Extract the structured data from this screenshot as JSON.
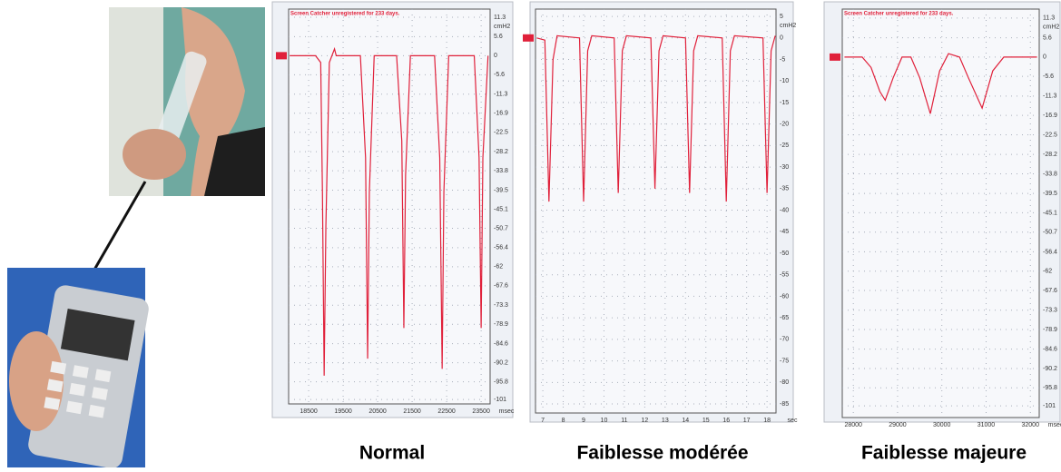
{
  "chart_data": [
    {
      "type": "line",
      "title": "Normal",
      "header": "Screen Catcher unregistered for 233 days.",
      "y_unit": "cmH2",
      "x_unit": "msec",
      "x": [
        17950,
        18700,
        18850,
        18900,
        18950,
        19000,
        19100,
        19250,
        19300,
        20000,
        20150,
        20210,
        20260,
        20400,
        21050,
        21200,
        21260,
        21310,
        21450,
        22150,
        22300,
        22370,
        22420,
        22560,
        23300,
        23440,
        23500,
        23550,
        23700
      ],
      "series": [
        {
          "color": "#e0203a",
          "values": [
            0,
            0,
            -2,
            -40,
            -94,
            -50,
            -2,
            2,
            0,
            0,
            -30,
            -89,
            -40,
            0,
            0,
            -25,
            -80,
            -35,
            0,
            0,
            -30,
            -92,
            -40,
            0,
            0,
            -30,
            -80,
            -30,
            0
          ]
        }
      ],
      "xlim": [
        17920,
        23760
      ],
      "ylim": [
        -102.3,
        13.7
      ],
      "xticks": [
        18500,
        19500,
        20500,
        21500,
        22500,
        23500
      ],
      "yticks": [
        11.3,
        5.6,
        0,
        -5.6,
        -11.3,
        -16.9,
        -22.5,
        -28.2,
        -33.8,
        -39.5,
        -45.1,
        -50.7,
        -56.4,
        -62.0,
        -67.6,
        -73.3,
        -78.9,
        -84.6,
        -90.2,
        -95.8,
        -101
      ],
      "grid": true
    },
    {
      "type": "line",
      "title": "Faiblesse modérée",
      "y_unit": "cmH2",
      "x_unit": "sec",
      "x": [
        6.7,
        7.1,
        7.3,
        7.5,
        7.7,
        8.8,
        9.0,
        9.2,
        9.4,
        10.5,
        10.7,
        10.9,
        11.1,
        12.3,
        12.5,
        12.7,
        12.9,
        14.0,
        14.2,
        14.4,
        14.6,
        15.8,
        16.0,
        16.2,
        16.4,
        17.8,
        18.0,
        18.2,
        18.4
      ],
      "series": [
        {
          "color": "#e0203a",
          "values": [
            0,
            -0.5,
            -38,
            -5,
            0.5,
            0,
            -38,
            -3,
            0.5,
            0,
            -36,
            -3,
            0.5,
            0,
            -35,
            -3,
            0.5,
            0,
            -36,
            -3,
            0.5,
            0,
            -38,
            -3,
            0.5,
            0,
            -36,
            -3,
            0.5
          ]
        }
      ],
      "xlim": [
        6.64,
        18.44
      ],
      "ylim": [
        -87.1,
        6.7
      ],
      "xticks": [
        7,
        8,
        9,
        10,
        11,
        12,
        13,
        14,
        15,
        16,
        17,
        18
      ],
      "yticks": [
        5,
        0,
        -5,
        -10,
        -15,
        -20,
        -25,
        -30,
        -35,
        -40,
        -45,
        -50,
        -55,
        -60,
        -65,
        -70,
        -75,
        -80,
        -85
      ],
      "grid": true
    },
    {
      "type": "line",
      "title": "Faiblesse majeure",
      "header": "Screen Catcher unregistered for 233 days.",
      "y_unit": "cmH2",
      "x_unit": "msec",
      "x": [
        27800,
        28200,
        28400,
        28600,
        28720,
        28900,
        29100,
        29300,
        29500,
        29740,
        29950,
        30150,
        30400,
        30600,
        30910,
        31150,
        31400,
        32150
      ],
      "series": [
        {
          "color": "#e0203a",
          "values": [
            0,
            0,
            -3,
            -10,
            -12.5,
            -6,
            0,
            0,
            -6,
            -16.4,
            -4,
            1,
            0,
            -6,
            -14.8,
            -4,
            0,
            0
          ]
        }
      ],
      "xlim": [
        27750,
        32200
      ],
      "ylim": [
        -104.4,
        13.9
      ],
      "xticks": [
        28000,
        29000,
        30000,
        31000,
        32000
      ],
      "yticks": [
        11.3,
        5.6,
        0,
        -5.6,
        -11.3,
        -16.9,
        -22.5,
        -28.2,
        -33.8,
        -39.5,
        -45.1,
        -50.7,
        -56.4,
        -62.0,
        -67.6,
        -73.3,
        -78.9,
        -84.6,
        -90.2,
        -95.8,
        -101
      ],
      "grid": true
    }
  ]
}
